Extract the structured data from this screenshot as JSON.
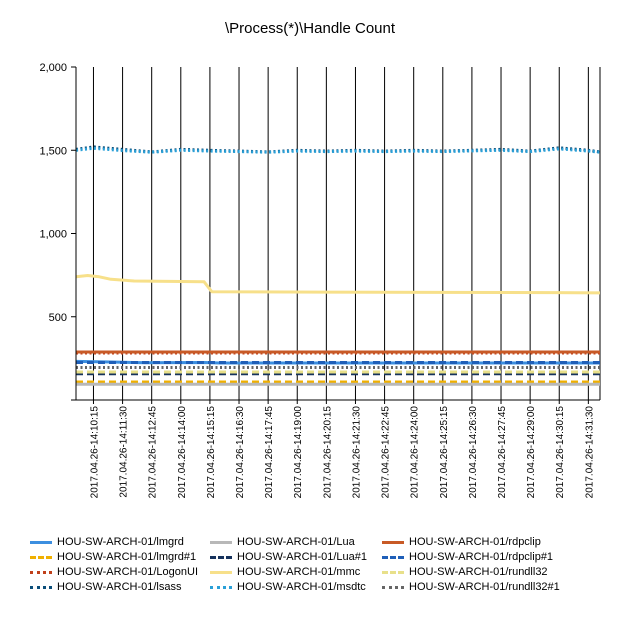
{
  "chart_data": {
    "type": "line",
    "title": "\\Process(*)\\Handle Count",
    "xlabel": "",
    "ylabel": "",
    "ylim": [
      0,
      2000
    ],
    "yticks": [
      "2,000",
      "1,500",
      "1,000",
      "500"
    ],
    "ytick_values": [
      2000,
      1500,
      1000,
      500
    ],
    "grid": "vertical",
    "legend_position": "bottom",
    "x_time_ticks": [
      "2017.04.26-14:10:15",
      "2017.04.26-14:11:30",
      "2017.04.26-14:12:45",
      "2017.04.26-14:14:00",
      "2017.04.26-14:15:15",
      "2017.04.26-14:16:30",
      "2017.04.26-14:17:45",
      "2017.04.26-14:19:00",
      "2017.04.26-14:20:15",
      "2017.04.26-14:21:30",
      "2017.04.26-14:22:45",
      "2017.04.26-14:24:00",
      "2017.04.26-14:25:15",
      "2017.04.26-14:26:30",
      "2017.04.26-14:27:45",
      "2017.04.26-14:29:00",
      "2017.04.26-14:30:15",
      "2017.04.26-14:31:30"
    ],
    "x_start": "2017.04.26-14:09:30",
    "x_end": "2017.04.26-14:32:00",
    "series": [
      {
        "name": "HOU-SW-ARCH-01/lmgrd",
        "color": "#3c8fe0",
        "dash": "solid",
        "points": [
          [
            "2017.04.26-14:09:30",
            232
          ],
          [
            "2017.04.26-14:11:00",
            228
          ],
          [
            "2017.04.26-14:12:30",
            224
          ],
          [
            "2017.04.26-14:15:00",
            225
          ],
          [
            "2017.04.26-14:15:40",
            222
          ],
          [
            "2017.04.26-14:32:00",
            222
          ]
        ]
      },
      {
        "name": "HOU-SW-ARCH-01/lmgrd#1",
        "color": "#f0b000",
        "dash": "dash",
        "points": [
          [
            "2017.04.26-14:09:30",
            108
          ],
          [
            "2017.04.26-14:32:00",
            108
          ]
        ]
      },
      {
        "name": "HOU-SW-ARCH-01/LogonUI",
        "color": "#c0401a",
        "dash": "dot",
        "points": [
          [
            "2017.04.26-14:09:30",
            282
          ],
          [
            "2017.04.26-14:32:00",
            282
          ]
        ]
      },
      {
        "name": "HOU-SW-ARCH-01/lsass",
        "color": "#0b4e7a",
        "dash": "dot",
        "points": [
          [
            "2017.04.26-14:09:30",
            1505
          ],
          [
            "2017.04.26-14:10:15",
            1520
          ],
          [
            "2017.04.26-14:11:30",
            1505
          ],
          [
            "2017.04.26-14:12:45",
            1490
          ],
          [
            "2017.04.26-14:14:00",
            1505
          ],
          [
            "2017.04.26-14:15:15",
            1500
          ],
          [
            "2017.04.26-14:16:30",
            1495
          ],
          [
            "2017.04.26-14:17:45",
            1490
          ],
          [
            "2017.04.26-14:19:00",
            1500
          ],
          [
            "2017.04.26-14:20:15",
            1495
          ],
          [
            "2017.04.26-14:21:30",
            1500
          ],
          [
            "2017.04.26-14:22:45",
            1495
          ],
          [
            "2017.04.26-14:24:00",
            1500
          ],
          [
            "2017.04.26-14:25:15",
            1495
          ],
          [
            "2017.04.26-14:26:30",
            1500
          ],
          [
            "2017.04.26-14:27:45",
            1505
          ],
          [
            "2017.04.26-14:29:00",
            1495
          ],
          [
            "2017.04.26-14:30:15",
            1515
          ],
          [
            "2017.04.26-14:31:30",
            1500
          ],
          [
            "2017.04.26-14:32:00",
            1490
          ]
        ]
      },
      {
        "name": "HOU-SW-ARCH-01/Lua",
        "color": "#b8b8b8",
        "dash": "solid",
        "points": [
          [
            "2017.04.26-14:09:30",
            95
          ],
          [
            "2017.04.26-14:32:00",
            95
          ]
        ]
      },
      {
        "name": "HOU-SW-ARCH-01/Lua#1",
        "color": "#16325c",
        "dash": "dash",
        "points": [
          [
            "2017.04.26-14:09:30",
            158
          ],
          [
            "2017.04.26-14:32:00",
            158
          ]
        ]
      },
      {
        "name": "HOU-SW-ARCH-01/mmc",
        "color": "#f7e08a",
        "dash": "solid",
        "points": [
          [
            "2017.04.26-14:09:30",
            740
          ],
          [
            "2017.04.26-14:10:00",
            748
          ],
          [
            "2017.04.26-14:10:30",
            740
          ],
          [
            "2017.04.26-14:11:00",
            725
          ],
          [
            "2017.04.26-14:12:00",
            715
          ],
          [
            "2017.04.26-14:15:00",
            710
          ],
          [
            "2017.04.26-14:15:20",
            650
          ],
          [
            "2017.04.26-14:20:00",
            648
          ],
          [
            "2017.04.26-14:25:00",
            646
          ],
          [
            "2017.04.26-14:30:00",
            645
          ],
          [
            "2017.04.26-14:32:00",
            643
          ]
        ]
      },
      {
        "name": "HOU-SW-ARCH-01/msdtc",
        "color": "#2aa0d8",
        "dash": "dot",
        "points": [
          [
            "2017.04.26-14:09:30",
            1500
          ],
          [
            "2017.04.26-14:10:15",
            1512
          ],
          [
            "2017.04.26-14:11:30",
            1498
          ],
          [
            "2017.04.26-14:12:45",
            1488
          ],
          [
            "2017.04.26-14:14:00",
            1500
          ],
          [
            "2017.04.26-14:15:15",
            1495
          ],
          [
            "2017.04.26-14:16:30",
            1492
          ],
          [
            "2017.04.26-14:17:45",
            1488
          ],
          [
            "2017.04.26-14:19:00",
            1495
          ],
          [
            "2017.04.26-14:20:15",
            1492
          ],
          [
            "2017.04.26-14:21:30",
            1495
          ],
          [
            "2017.04.26-14:22:45",
            1492
          ],
          [
            "2017.04.26-14:24:00",
            1495
          ],
          [
            "2017.04.26-14:25:15",
            1492
          ],
          [
            "2017.04.26-14:26:30",
            1496
          ],
          [
            "2017.04.26-14:27:45",
            1500
          ],
          [
            "2017.04.26-14:29:00",
            1492
          ],
          [
            "2017.04.26-14:30:15",
            1508
          ],
          [
            "2017.04.26-14:31:30",
            1495
          ],
          [
            "2017.04.26-14:32:00",
            1488
          ]
        ]
      },
      {
        "name": "HOU-SW-ARCH-01/rdpclip",
        "color": "#c85a26",
        "dash": "solid",
        "points": [
          [
            "2017.04.26-14:09:30",
            288
          ],
          [
            "2017.04.26-14:32:00",
            288
          ]
        ]
      },
      {
        "name": "HOU-SW-ARCH-01/rdpclip#1",
        "color": "#1f5fb8",
        "dash": "dash",
        "points": [
          [
            "2017.04.26-14:09:30",
            225
          ],
          [
            "2017.04.26-14:32:00",
            225
          ]
        ]
      },
      {
        "name": "HOU-SW-ARCH-01/rundll32",
        "color": "#e8e08a",
        "dash": "dash",
        "points": [
          [
            "2017.04.26-14:09:30",
            168
          ],
          [
            "2017.04.26-14:32:00",
            168
          ]
        ]
      },
      {
        "name": "HOU-SW-ARCH-01/rundll32#1",
        "color": "#666666",
        "dash": "dot",
        "points": [
          [
            "2017.04.26-14:09:30",
            195
          ],
          [
            "2017.04.26-14:32:00",
            195
          ]
        ]
      }
    ]
  }
}
